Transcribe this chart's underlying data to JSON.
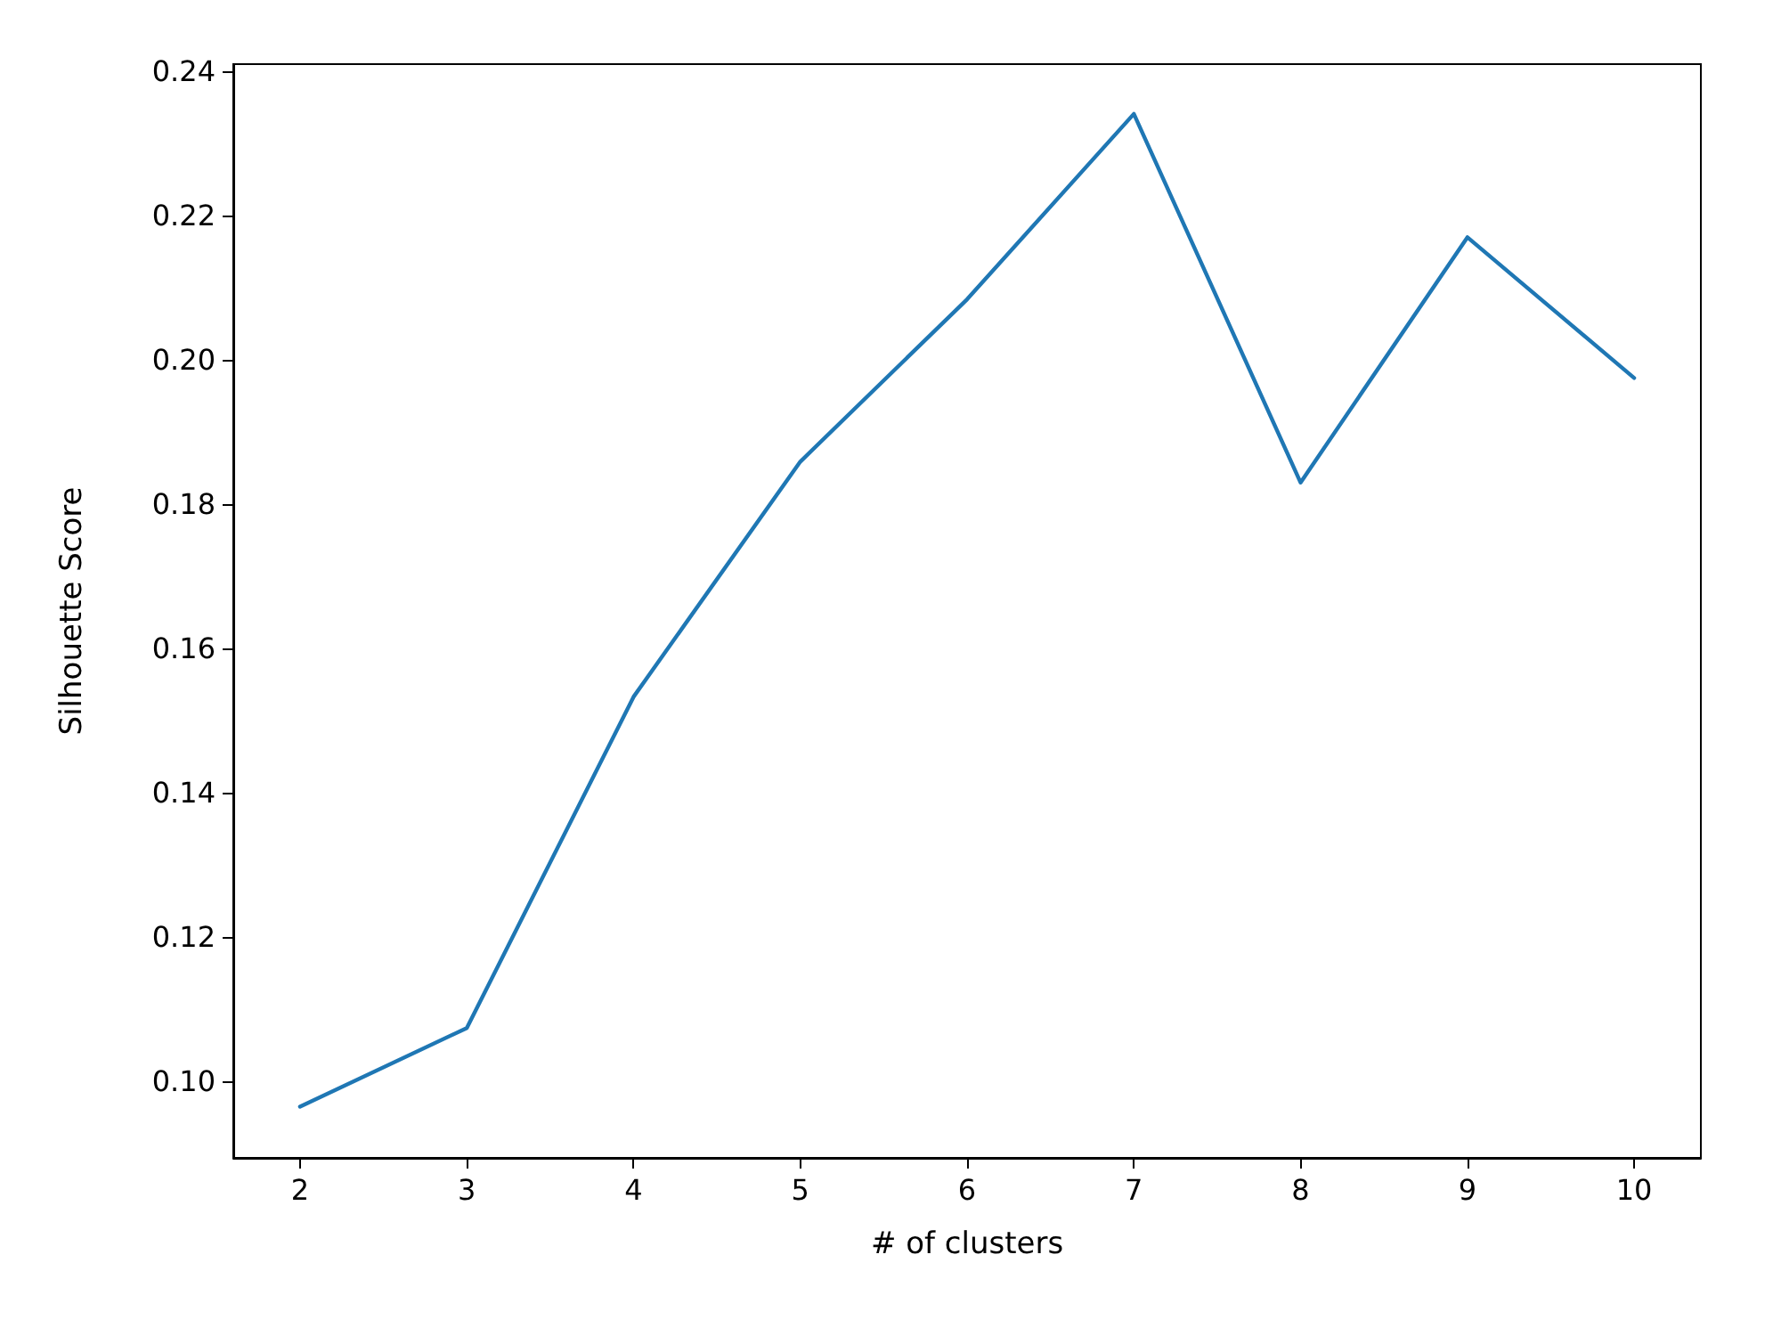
{
  "chart_data": {
    "type": "line",
    "xlabel": "# of clusters",
    "ylabel": "Silhouette Score",
    "x": [
      2,
      3,
      4,
      5,
      6,
      7,
      8,
      9,
      10
    ],
    "series": [
      {
        "color": "#1f77b4",
        "values": [
          0.0965,
          0.1074,
          0.1533,
          0.1859,
          0.2084,
          0.2341,
          0.183,
          0.217,
          0.1975
        ]
      }
    ],
    "xlim": [
      1.6,
      10.4
    ],
    "xticks": [
      2,
      3,
      4,
      5,
      6,
      7,
      8,
      9,
      10
    ],
    "ylim": [
      0.0894,
      0.241
    ],
    "yticks": [
      {
        "value": 0.1,
        "label": "0.10"
      },
      {
        "value": 0.12,
        "label": "0.12"
      },
      {
        "value": 0.14,
        "label": "0.14"
      },
      {
        "value": 0.16,
        "label": "0.16"
      },
      {
        "value": 0.18,
        "label": "0.18"
      },
      {
        "value": 0.2,
        "label": "0.20"
      },
      {
        "value": 0.22,
        "label": "0.22"
      },
      {
        "value": 0.24,
        "label": "0.24"
      }
    ],
    "grid": false,
    "marker": "none",
    "line_style": "solid"
  }
}
